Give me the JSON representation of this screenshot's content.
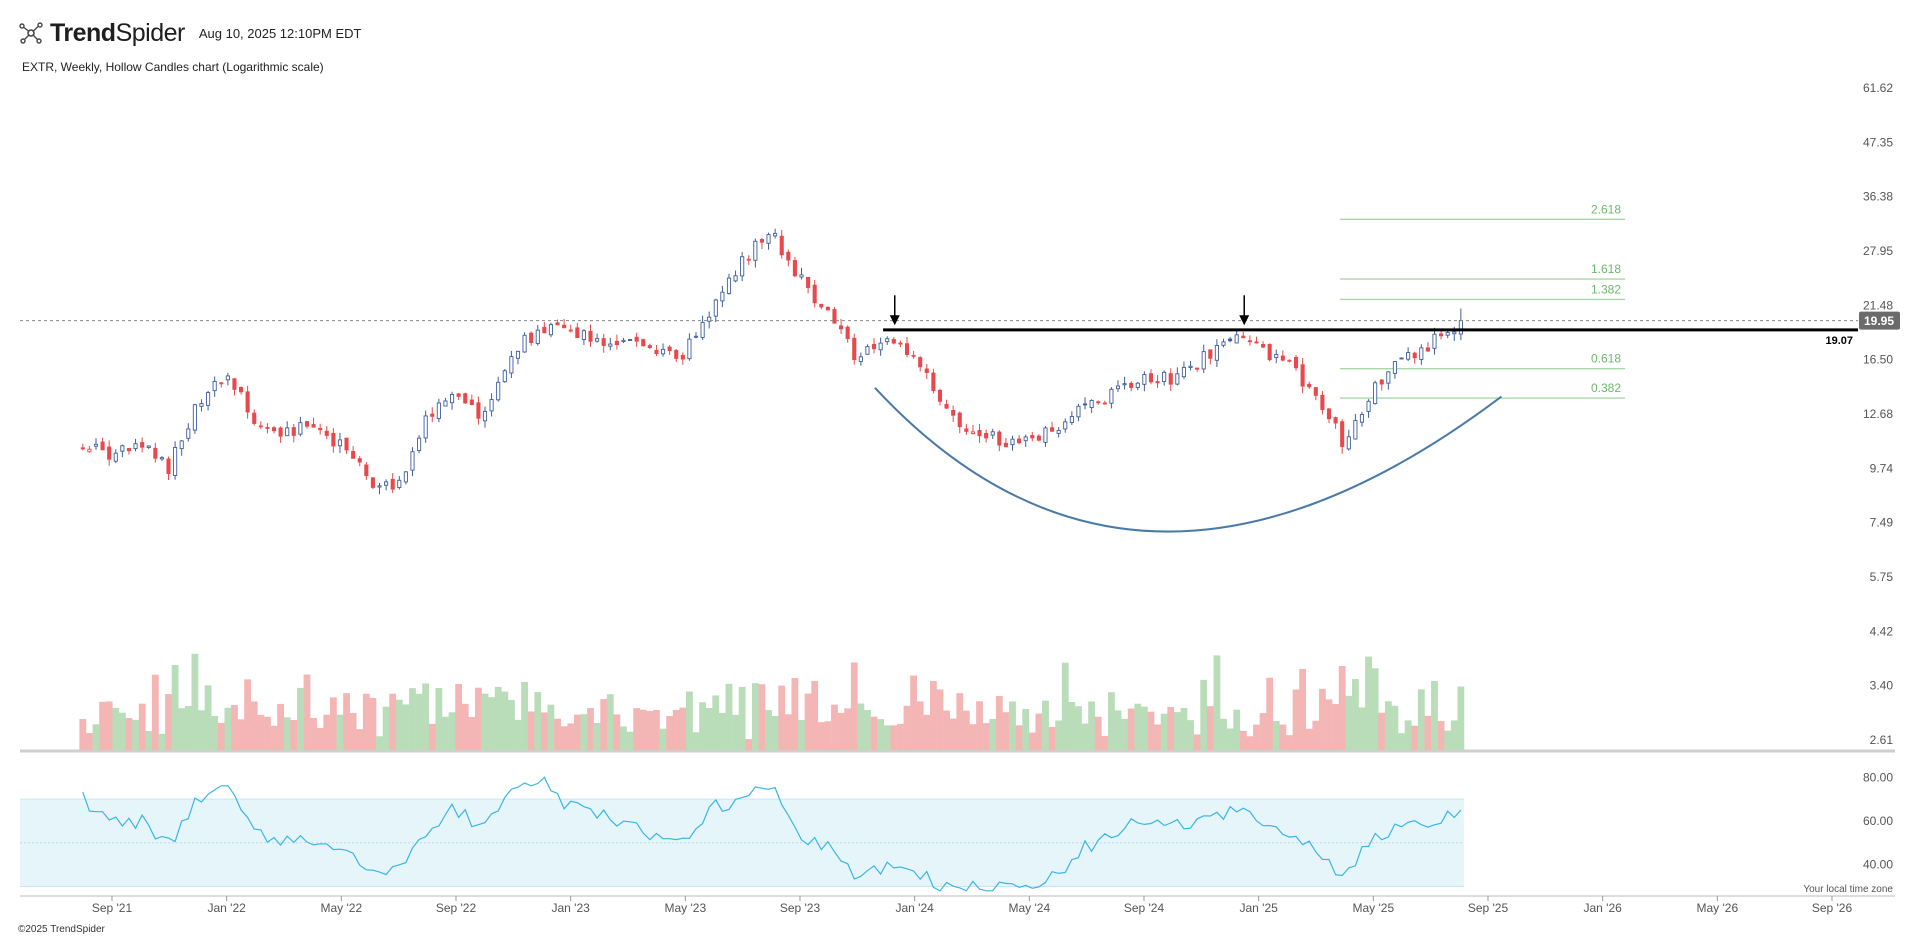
{
  "header": {
    "brand_bold": "Trend",
    "brand_light": "Spider",
    "timestamp": "Aug 10, 2025 12:10PM EDT"
  },
  "chart_title": "EXTR, Weekly, Hollow Candles chart (Logarithmic scale)",
  "footer": {
    "copyright": "©2025 TrendSpider",
    "timezone_note": "Your local time zone"
  },
  "colors": {
    "up": "#3d5f9e",
    "down": "#e8494d",
    "vol_up": "#b8ddb8",
    "vol_down": "#f4b5b5",
    "rsi_line": "#3ab6e4",
    "rsi_band": "#e5f5fa",
    "fib": "#a8d8a8",
    "curve": "#4a7aa8",
    "price_tag": "#6b6b6b"
  },
  "chart_data": [
    {
      "type": "candlestick",
      "ticker": "EXTR",
      "interval": "Weekly",
      "scale": "log",
      "y_ticks": [
        61.62,
        47.35,
        36.38,
        27.95,
        21.48,
        16.5,
        12.68,
        9.74,
        7.49,
        5.75,
        4.42,
        3.4,
        2.61
      ],
      "y_tick_labels": [
        "61.62",
        "47.35",
        "36.38",
        "27.95",
        "21.48",
        "16.50",
        "12.68",
        "9.74",
        "7.49",
        "5.75",
        "4.42",
        "3.40",
        "2.61"
      ],
      "x_ticks": [
        "Sep '21",
        "Jan '22",
        "May '22",
        "Sep '22",
        "Jan '23",
        "May '23",
        "Sep '23",
        "Jan '24",
        "May '24",
        "Sep '24",
        "Jan '25",
        "May '25",
        "Sep '25",
        "Jan '26",
        "May '26",
        "Sep '26"
      ],
      "current_price": 19.95,
      "current_price_label": "19.95",
      "resistance_level": 19.07,
      "resistance_label": "19.07",
      "fib_levels": [
        {
          "label": "2.618",
          "value": 32.6
        },
        {
          "label": "1.618",
          "value": 24.4
        },
        {
          "label": "1.382",
          "value": 22.1
        },
        {
          "label": "0.618",
          "value": 15.8
        },
        {
          "label": "0.382",
          "value": 13.7
        }
      ],
      "annotations": [
        "down-arrow at Dec '23 high",
        "down-arrow at Dec '24 high",
        "rounding-bottom arc"
      ],
      "price_path": [
        [
          "2021-08-01",
          10.9
        ],
        [
          "2021-09-01",
          10.4
        ],
        [
          "2021-10-01",
          10.8
        ],
        [
          "2021-11-01",
          9.8
        ],
        [
          "2021-12-01",
          13.5
        ],
        [
          "2022-01-01",
          15.2
        ],
        [
          "2022-02-01",
          12.2
        ],
        [
          "2022-03-01",
          11.4
        ],
        [
          "2022-04-01",
          12.0
        ],
        [
          "2022-05-01",
          11.0
        ],
        [
          "2022-06-01",
          9.2
        ],
        [
          "2022-07-01",
          8.9
        ],
        [
          "2022-08-01",
          12.5
        ],
        [
          "2022-09-01",
          13.8
        ],
        [
          "2022-10-01",
          12.4
        ],
        [
          "2022-11-01",
          17.2
        ],
        [
          "2022-12-01",
          19.2
        ],
        [
          "2023-01-01",
          18.8
        ],
        [
          "2023-02-01",
          18.3
        ],
        [
          "2023-03-01",
          17.9
        ],
        [
          "2023-04-01",
          17.6
        ],
        [
          "2023-05-01",
          16.8
        ],
        [
          "2023-06-01",
          21.5
        ],
        [
          "2023-07-01",
          26.5
        ],
        [
          "2023-08-01",
          31.0
        ],
        [
          "2023-09-01",
          24.5
        ],
        [
          "2023-10-01",
          20.6
        ],
        [
          "2023-11-01",
          16.6
        ],
        [
          "2023-12-01",
          18.0
        ],
        [
          "2024-01-01",
          16.8
        ],
        [
          "2024-02-01",
          12.8
        ],
        [
          "2024-03-01",
          11.7
        ],
        [
          "2024-04-01",
          11.2
        ],
        [
          "2024-05-01",
          11.0
        ],
        [
          "2024-06-01",
          11.8
        ],
        [
          "2024-07-01",
          13.4
        ],
        [
          "2024-08-01",
          14.0
        ],
        [
          "2024-09-01",
          15.1
        ],
        [
          "2024-10-01",
          15.0
        ],
        [
          "2024-11-01",
          16.5
        ],
        [
          "2024-12-01",
          18.3
        ],
        [
          "2025-01-01",
          17.5
        ],
        [
          "2025-02-01",
          16.0
        ],
        [
          "2025-03-01",
          14.2
        ],
        [
          "2025-04-01",
          11.0
        ],
        [
          "2025-05-01",
          14.5
        ],
        [
          "2025-06-01",
          16.5
        ],
        [
          "2025-07-01",
          17.8
        ],
        [
          "2025-08-08",
          19.95
        ]
      ]
    },
    {
      "type": "bar",
      "name": "Volume",
      "note": "relative weekly volume, hollow-candle colouring"
    },
    {
      "type": "line",
      "name": "RSI",
      "y_ticks": [
        80,
        60,
        40
      ],
      "y_tick_labels": [
        "80.00",
        "60.00",
        "40.00"
      ],
      "band": [
        30,
        70
      ],
      "rsi_path": [
        [
          "2021-08-01",
          70
        ],
        [
          "2021-09-01",
          58
        ],
        [
          "2021-10-01",
          60
        ],
        [
          "2021-11-01",
          50
        ],
        [
          "2021-12-01",
          70
        ],
        [
          "2022-01-01",
          77
        ],
        [
          "2022-02-01",
          53
        ],
        [
          "2022-03-01",
          50
        ],
        [
          "2022-04-01",
          52
        ],
        [
          "2022-05-01",
          48
        ],
        [
          "2022-06-01",
          37
        ],
        [
          "2022-07-01",
          36
        ],
        [
          "2022-08-01",
          55
        ],
        [
          "2022-09-01",
          66
        ],
        [
          "2022-10-01",
          56
        ],
        [
          "2022-11-01",
          74
        ],
        [
          "2022-12-01",
          78
        ],
        [
          "2023-01-01",
          66
        ],
        [
          "2023-02-01",
          64
        ],
        [
          "2023-03-01",
          58
        ],
        [
          "2023-04-01",
          54
        ],
        [
          "2023-05-01",
          52
        ],
        [
          "2023-06-01",
          66
        ],
        [
          "2023-07-01",
          70
        ],
        [
          "2023-08-01",
          76
        ],
        [
          "2023-09-01",
          55
        ],
        [
          "2023-10-01",
          47
        ],
        [
          "2023-11-01",
          35
        ],
        [
          "2023-12-01",
          40
        ],
        [
          "2024-01-01",
          37
        ],
        [
          "2024-02-01",
          30
        ],
        [
          "2024-03-01",
          29
        ],
        [
          "2024-04-01",
          30
        ],
        [
          "2024-05-01",
          31
        ],
        [
          "2024-06-01",
          35
        ],
        [
          "2024-07-01",
          48
        ],
        [
          "2024-08-01",
          55
        ],
        [
          "2024-09-01",
          60
        ],
        [
          "2024-10-01",
          57
        ],
        [
          "2024-11-01",
          60
        ],
        [
          "2024-12-01",
          65
        ],
        [
          "2025-01-01",
          60
        ],
        [
          "2025-02-01",
          56
        ],
        [
          "2025-03-01",
          48
        ],
        [
          "2025-04-01",
          33
        ],
        [
          "2025-05-01",
          52
        ],
        [
          "2025-06-01",
          58
        ],
        [
          "2025-07-01",
          60
        ],
        [
          "2025-08-08",
          65
        ]
      ]
    }
  ]
}
